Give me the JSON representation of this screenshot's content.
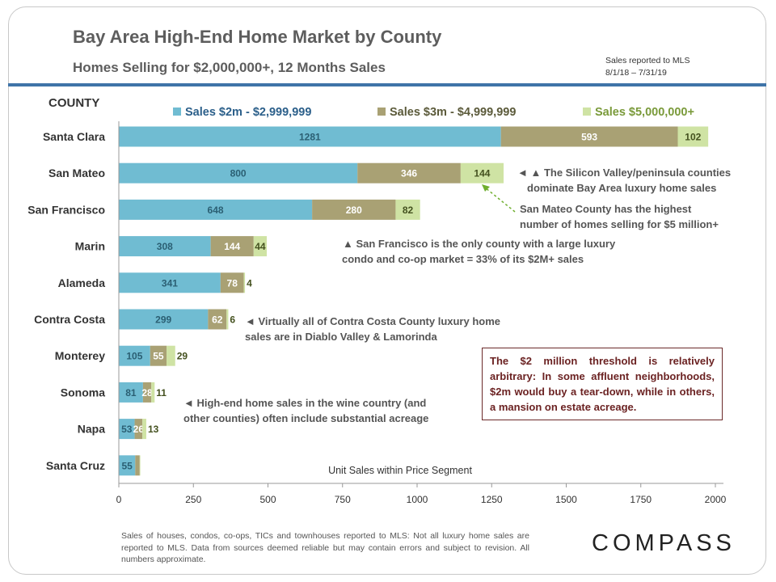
{
  "header": {
    "title": "Bay Area High-End Home Market by County",
    "subtitle": "Homes Selling for $2,000,000+, 12 Months Sales",
    "mls_note_line1": "Sales reported to MLS",
    "mls_note_line2": "8/1/18 – 7/31/19"
  },
  "chart_data": {
    "type": "bar",
    "orientation": "horizontal",
    "stacked": true,
    "category_header": "COUNTY",
    "categories": [
      "Santa Clara",
      "San Mateo",
      "San Francisco",
      "Marin",
      "Alameda",
      "Contra Costa",
      "Monterey",
      "Sonoma",
      "Napa",
      "Santa Cruz"
    ],
    "series": [
      {
        "name": "Sales $2m - $2,999,999",
        "color": "#70bcd2",
        "values": [
          1281,
          800,
          648,
          308,
          341,
          299,
          105,
          81,
          53,
          55
        ],
        "labels": [
          "1281",
          "800",
          "648",
          "308",
          "341",
          "299",
          "105",
          "81",
          "53",
          "55"
        ]
      },
      {
        "name": "Sales $3m - $4,999,999",
        "color": "#a9a174",
        "values": [
          593,
          346,
          280,
          144,
          78,
          62,
          55,
          28,
          26,
          15
        ],
        "labels": [
          "593",
          "346",
          "280",
          "144",
          "78",
          "62",
          "55",
          "28",
          "26",
          ""
        ]
      },
      {
        "name": "Sales $5,000,000+",
        "color": "#cfe3a4",
        "values": [
          102,
          144,
          82,
          44,
          4,
          6,
          29,
          11,
          13,
          2
        ],
        "labels": [
          "102",
          "144",
          "82",
          "44",
          "4",
          "6",
          "29",
          "11",
          "13",
          ""
        ]
      }
    ],
    "xlabel": "Unit Sales within Price Segment",
    "xlim": [
      0,
      2000
    ],
    "xticks": [
      "0",
      "250",
      "500",
      "750",
      "1000",
      "1250",
      "1500",
      "1750",
      "2000"
    ],
    "legend_position": "top",
    "grid": false,
    "annotations": [
      {
        "id": "silicon",
        "lines": [
          "◄ ▲ The Silicon Valley/peninsula counties",
          "dominate Bay Area luxury home sales"
        ]
      },
      {
        "id": "sanmateo",
        "lines": [
          "San Mateo County has the highest",
          "number of homes selling for $5 million+"
        ]
      },
      {
        "id": "sf",
        "lines": [
          "▲ San Francisco is the only county with a large luxury",
          "condo and co-op market = 33% of its $2M+ sales"
        ]
      },
      {
        "id": "contracosta",
        "lines": [
          "◄ Virtually all of Contra Costa County luxury home",
          "sales are in Diablo Valley & Lamorinda"
        ]
      },
      {
        "id": "wine",
        "lines": [
          "◄ High-end home sales in the wine country (and",
          "other counties) often include substantial acreage"
        ]
      }
    ]
  },
  "callout": {
    "text": "The $2 million threshold is relatively arbitrary: In some affluent neighborhoods, $2m would buy a tear-down, while in others, a mansion on estate acreage."
  },
  "footer": {
    "text": "Sales of houses, condos, co-ops, TICs and townhouses reported to MLS: Not all luxury home sales are reported to MLS. Data from sources deemed reliable but may contain errors and subject to revision. All numbers approximate."
  },
  "brand": {
    "logo": "COMPASS"
  }
}
